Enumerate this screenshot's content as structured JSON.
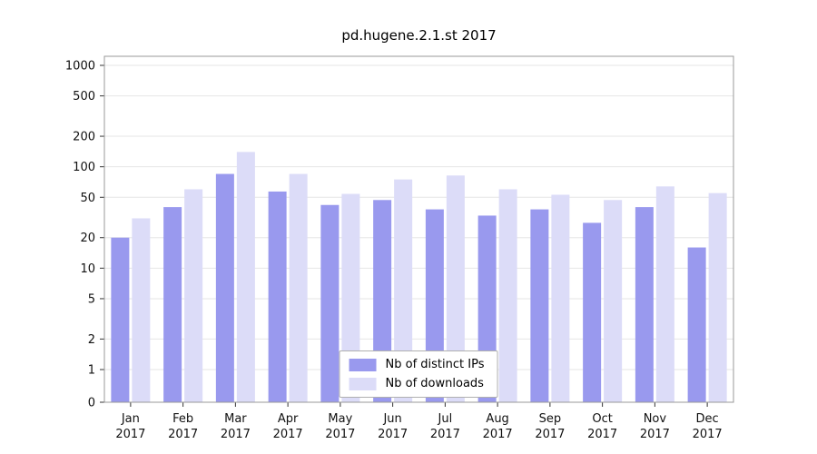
{
  "chart_data": {
    "type": "bar",
    "title": "pd.hugene.2.1.st 2017",
    "scale": "log",
    "grid": true,
    "legend_position": "bottom-center",
    "categories": [
      "Jan",
      "Feb",
      "Mar",
      "Apr",
      "May",
      "Jun",
      "Jul",
      "Aug",
      "Sep",
      "Oct",
      "Nov",
      "Dec"
    ],
    "year_label": "2017",
    "yticks": [
      0,
      1,
      2,
      5,
      10,
      20,
      50,
      100,
      200,
      500,
      1000
    ],
    "ylim": [
      0,
      1000
    ],
    "series": [
      {
        "name": "Nb of distinct IPs",
        "color": "#9999ee",
        "values": [
          20,
          40,
          85,
          57,
          42,
          47,
          38,
          33,
          38,
          28,
          40,
          16
        ]
      },
      {
        "name": "Nb of downloads",
        "color": "#dcdcf8",
        "values": [
          31,
          60,
          140,
          85,
          54,
          75,
          82,
          60,
          53,
          47,
          64,
          55
        ]
      }
    ],
    "colors": {
      "gridline": "#e6e6e6",
      "plot_border": "#999999",
      "tick": "#333333",
      "text": "#111111"
    }
  }
}
